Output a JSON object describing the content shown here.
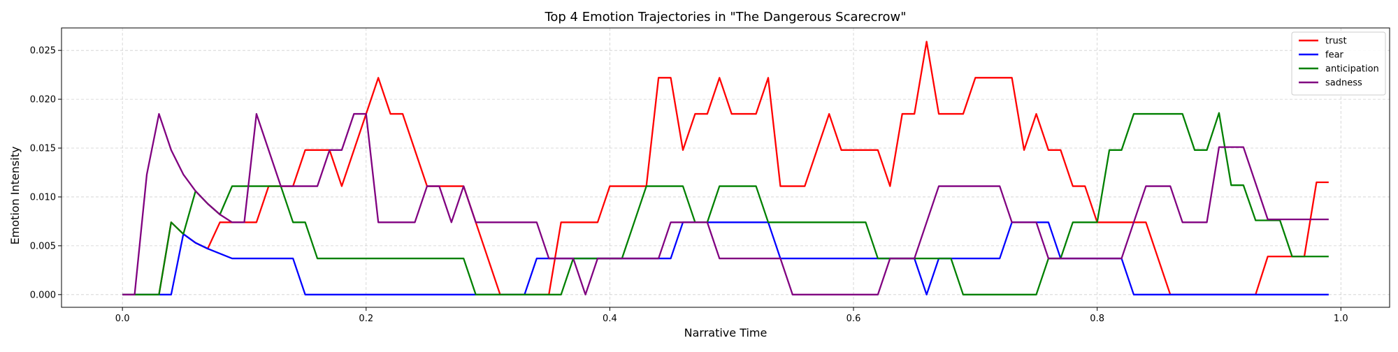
{
  "chart_data": {
    "type": "line",
    "title": "Top 4 Emotion Trajectories in \"The Dangerous Scarecrow\"",
    "xlabel": "Narrative Time",
    "ylabel": "Emotion Intensity",
    "xlim": [
      -0.05,
      1.04
    ],
    "ylim": [
      -0.0013,
      0.0273
    ],
    "xticks": [
      0.0,
      0.2,
      0.4,
      0.6,
      0.8,
      1.0
    ],
    "xtick_labels": [
      "0.0",
      "0.2",
      "0.4",
      "0.6",
      "0.8",
      "1.0"
    ],
    "yticks": [
      0.0,
      0.005,
      0.01,
      0.015,
      0.02,
      0.025
    ],
    "ytick_labels": [
      "0.000",
      "0.005",
      "0.010",
      "0.015",
      "0.020",
      "0.025"
    ],
    "grid": true,
    "legend_position": "top-right",
    "x": [
      0.0,
      0.01,
      0.02,
      0.03,
      0.04,
      0.05,
      0.06,
      0.07,
      0.08,
      0.09,
      0.1,
      0.11,
      0.12,
      0.13,
      0.14,
      0.15,
      0.16,
      0.17,
      0.18,
      0.19,
      0.2,
      0.21,
      0.22,
      0.23,
      0.24,
      0.25,
      0.26,
      0.27,
      0.28,
      0.29,
      0.3,
      0.31,
      0.32,
      0.33,
      0.34,
      0.35,
      0.36,
      0.37,
      0.38,
      0.39,
      0.4,
      0.41,
      0.42,
      0.43,
      0.44,
      0.45,
      0.46,
      0.47,
      0.48,
      0.49,
      0.5,
      0.51,
      0.52,
      0.53,
      0.54,
      0.55,
      0.56,
      0.57,
      0.58,
      0.59,
      0.6,
      0.61,
      0.62,
      0.63,
      0.64,
      0.65,
      0.66,
      0.67,
      0.68,
      0.69,
      0.7,
      0.71,
      0.72,
      0.73,
      0.74,
      0.75,
      0.76,
      0.77,
      0.78,
      0.79,
      0.8,
      0.81,
      0.82,
      0.83,
      0.84,
      0.85,
      0.86,
      0.87,
      0.88,
      0.89,
      0.9,
      0.91,
      0.92,
      0.93,
      0.94,
      0.95,
      0.96,
      0.97,
      0.98,
      0.99
    ],
    "series": [
      {
        "name": "trust",
        "color": "#ff0000",
        "values": [
          0,
          0,
          0,
          0,
          0.0074,
          0.0062,
          0.0053,
          0.0047,
          0.0074,
          0.0074,
          0.0074,
          0.0074,
          0.0111,
          0.0111,
          0.0111,
          0.0148,
          0.0148,
          0.0148,
          0.0111,
          0.0148,
          0.0185,
          0.0222,
          0.0185,
          0.0185,
          0.0148,
          0.0111,
          0.0111,
          0.0111,
          0.0111,
          0.0074,
          0.0037,
          0,
          0,
          0,
          0,
          0,
          0.0074,
          0.0074,
          0.0074,
          0.0074,
          0.0111,
          0.0111,
          0.0111,
          0.0111,
          0.0222,
          0.0222,
          0.0148,
          0.0185,
          0.0185,
          0.0222,
          0.0185,
          0.0185,
          0.0185,
          0.0222,
          0.0111,
          0.0111,
          0.0111,
          0.0148,
          0.0185,
          0.0148,
          0.0148,
          0.0148,
          0.0148,
          0.0111,
          0.0185,
          0.0185,
          0.0259,
          0.0185,
          0.0185,
          0.0185,
          0.0222,
          0.0222,
          0.0222,
          0.0222,
          0.0148,
          0.0185,
          0.0148,
          0.0148,
          0.0111,
          0.0111,
          0.0074,
          0.0074,
          0.0074,
          0.0074,
          0.0074,
          0.0037,
          0,
          0,
          0,
          0,
          0,
          0,
          0,
          0,
          0.0039,
          0.0039,
          0.0039,
          0.0039,
          0.0115,
          0.0115
        ]
      },
      {
        "name": "fear",
        "color": "#0000ff",
        "values": [
          0,
          0,
          0,
          0,
          0,
          0.0062,
          0.0053,
          0.0047,
          0.0042,
          0.0037,
          0.0037,
          0.0037,
          0.0037,
          0.0037,
          0.0037,
          0,
          0,
          0,
          0,
          0,
          0,
          0,
          0,
          0,
          0,
          0,
          0,
          0,
          0,
          0,
          0,
          0,
          0,
          0,
          0.0037,
          0.0037,
          0.0037,
          0.0037,
          0.0037,
          0.0037,
          0.0037,
          0.0037,
          0.0037,
          0.0037,
          0.0037,
          0.0037,
          0.0074,
          0.0074,
          0.0074,
          0.0074,
          0.0074,
          0.0074,
          0.0074,
          0.0074,
          0.0037,
          0.0037,
          0.0037,
          0.0037,
          0.0037,
          0.0037,
          0.0037,
          0.0037,
          0.0037,
          0.0037,
          0.0037,
          0.0037,
          0,
          0.0037,
          0.0037,
          0.0037,
          0.0037,
          0.0037,
          0.0037,
          0.0074,
          0.0074,
          0.0074,
          0.0074,
          0.0037,
          0.0037,
          0.0037,
          0.0037,
          0.0037,
          0.0037,
          0,
          0,
          0,
          0,
          0,
          0,
          0,
          0,
          0,
          0,
          0,
          0,
          0,
          0,
          0,
          0,
          0
        ]
      },
      {
        "name": "anticipation",
        "color": "#008000",
        "values": [
          0,
          0,
          0,
          0,
          0.0074,
          0.0062,
          0.0106,
          0.0093,
          0.0082,
          0.0111,
          0.0111,
          0.0111,
          0.0111,
          0.0111,
          0.0074,
          0.0074,
          0.0037,
          0.0037,
          0.0037,
          0.0037,
          0.0037,
          0.0037,
          0.0037,
          0.0037,
          0.0037,
          0.0037,
          0.0037,
          0.0037,
          0.0037,
          0,
          0,
          0,
          0,
          0,
          0,
          0,
          0,
          0.0037,
          0.0037,
          0.0037,
          0.0037,
          0.0037,
          0.0074,
          0.0111,
          0.0111,
          0.0111,
          0.0111,
          0.0074,
          0.0074,
          0.0111,
          0.0111,
          0.0111,
          0.0111,
          0.0074,
          0.0074,
          0.0074,
          0.0074,
          0.0074,
          0.0074,
          0.0074,
          0.0074,
          0.0074,
          0.0037,
          0.0037,
          0.0037,
          0.0037,
          0.0037,
          0.0037,
          0.0037,
          0,
          0,
          0,
          0,
          0,
          0,
          0,
          0.0037,
          0.0037,
          0.0074,
          0.0074,
          0.0074,
          0.0148,
          0.0148,
          0.0185,
          0.0185,
          0.0185,
          0.0185,
          0.0185,
          0.0148,
          0.0148,
          0.0186,
          0.0112,
          0.0112,
          0.0076,
          0.0076,
          0.0076,
          0.0039,
          0.0039,
          0.0039,
          0.0039
        ]
      },
      {
        "name": "sadness",
        "color": "#800080",
        "values": [
          0,
          0,
          0.0123,
          0.0185,
          0.0148,
          0.0123,
          0.0106,
          0.0093,
          0.0082,
          0.0074,
          0.0074,
          0.0185,
          0.0148,
          0.0111,
          0.0111,
          0.0111,
          0.0111,
          0.0148,
          0.0148,
          0.0185,
          0.0185,
          0.0074,
          0.0074,
          0.0074,
          0.0074,
          0.0111,
          0.0111,
          0.0074,
          0.0111,
          0.0074,
          0.0074,
          0.0074,
          0.0074,
          0.0074,
          0.0074,
          0.0037,
          0.0037,
          0.0037,
          0,
          0.0037,
          0.0037,
          0.0037,
          0.0037,
          0.0037,
          0.0037,
          0.0074,
          0.0074,
          0.0074,
          0.0074,
          0.0037,
          0.0037,
          0.0037,
          0.0037,
          0.0037,
          0.0037,
          0,
          0,
          0,
          0,
          0,
          0,
          0,
          0,
          0.0037,
          0.0037,
          0.0037,
          0.0074,
          0.0111,
          0.0111,
          0.0111,
          0.0111,
          0.0111,
          0.0111,
          0.0074,
          0.0074,
          0.0074,
          0.0037,
          0.0037,
          0.0037,
          0.0037,
          0.0037,
          0.0037,
          0.0037,
          0.0074,
          0.0111,
          0.0111,
          0.0111,
          0.0074,
          0.0074,
          0.0074,
          0.0151,
          0.0151,
          0.0151,
          0.0114,
          0.0077,
          0.0077,
          0.0077,
          0.0077,
          0.0077,
          0.0077
        ]
      }
    ]
  }
}
